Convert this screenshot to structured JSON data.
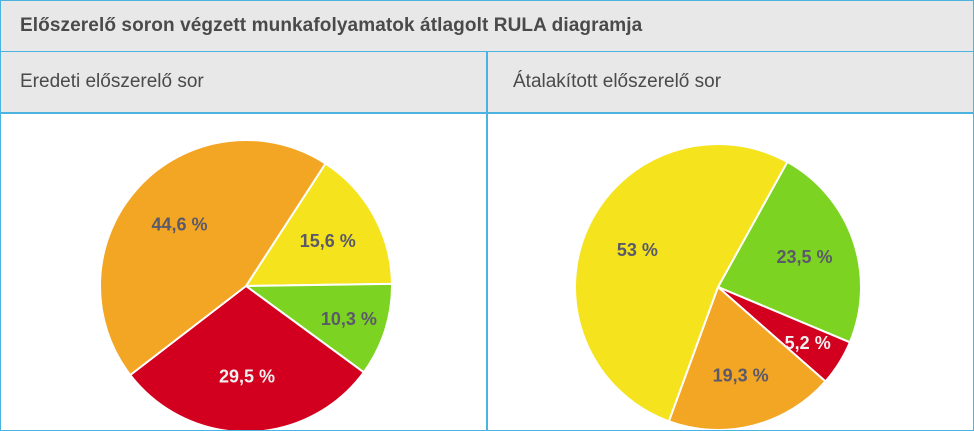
{
  "title": "Előszerelő soron végzett munkafolyamatok átlagolt RULA diagramja",
  "colors": {
    "border": "#4cb3e0",
    "header_bg": "#e8e8e8",
    "orange": "#f3a623",
    "yellow": "#f5e31e",
    "green": "#7dd321",
    "red": "#d2001e",
    "label_dark": "#5a5a6a",
    "label_light": "#f0f0f0"
  },
  "panels": [
    {
      "label": "Eredeti előszerelő sor"
    },
    {
      "label": "Átalakított előszerelő sor"
    }
  ],
  "chart_data": [
    {
      "type": "pie",
      "title": "Eredeti előszerelő sor",
      "slices": [
        {
          "label": "15,6 %",
          "value": 15.6,
          "color": "#f5e31e"
        },
        {
          "label": "10,3 %",
          "value": 10.3,
          "color": "#7dd321"
        },
        {
          "label": "29,5 %",
          "value": 29.5,
          "color": "#d2001e"
        },
        {
          "label": "44,6 %",
          "value": 44.6,
          "color": "#f3a623"
        }
      ]
    },
    {
      "type": "pie",
      "title": "Átalakított előszerelő sor",
      "slices": [
        {
          "label": "23,5 %",
          "value": 23.5,
          "color": "#7dd321"
        },
        {
          "label": "5,2 %",
          "value": 5.2,
          "color": "#d2001e"
        },
        {
          "label": "19,3 %",
          "value": 19.3,
          "color": "#f3a623"
        },
        {
          "label": "53 %",
          "value": 53,
          "color": "#f5e31e"
        }
      ]
    }
  ]
}
